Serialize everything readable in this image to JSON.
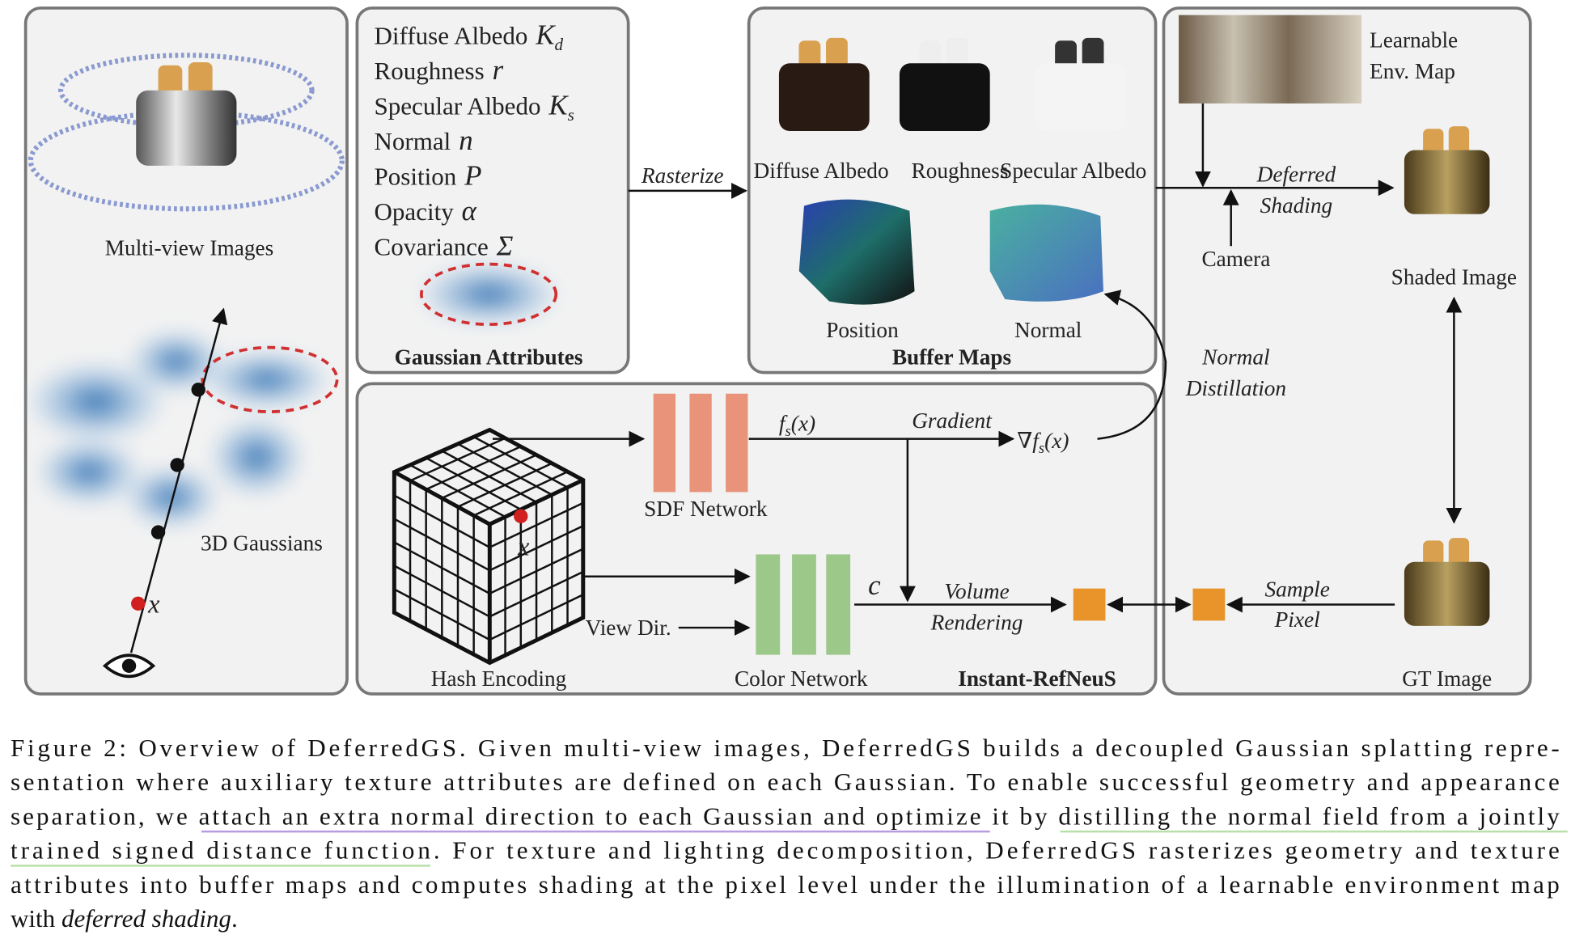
{
  "figure": {
    "multiview": {
      "label": "Multi-view Images",
      "gaussians_label": "3D Gaussians",
      "point_label": "x"
    },
    "attributes": {
      "items": [
        {
          "name": "Diffuse Albedo",
          "symbol": "K",
          "subscript": "d"
        },
        {
          "name": "Roughness",
          "symbol": "r"
        },
        {
          "name": "Specular Albedo",
          "symbol": "K",
          "subscript": "s"
        },
        {
          "name": "Normal",
          "symbol": "n"
        },
        {
          "name": "Position",
          "symbol": "P"
        },
        {
          "name": "Opacity",
          "symbol": "α"
        },
        {
          "name": "Covariance",
          "symbol": "Σ"
        }
      ],
      "title": "Gaussian Attributes"
    },
    "rasterize": "Rasterize",
    "buffer_maps": {
      "title": "Buffer Maps",
      "labels": [
        "Diffuse Albedo",
        "Roughness",
        "Specular Albedo",
        "Position",
        "Normal"
      ]
    },
    "shading": {
      "env_map": [
        "Learnable",
        "Env. Map"
      ],
      "deferred": [
        "Deferred",
        "Shading"
      ],
      "camera": "Camera",
      "shaded": "Shaded Image",
      "gt": "GT Image",
      "sample": [
        "Sample",
        "Pixel"
      ]
    },
    "normal_distillation": [
      "Normal",
      "Distillation"
    ],
    "neus": {
      "title": "Instant-RefNeuS",
      "hash": "Hash Encoding",
      "point": "x",
      "sdf": "SDF Network",
      "sdf_out": "f",
      "sdf_sub": "s",
      "sdf_arg": "(x)",
      "gradient": "Gradient",
      "nabla": "∇",
      "color": "Color Network",
      "view_dir": "View Dir.",
      "c": "c",
      "volume": [
        "Volume",
        "Rendering"
      ]
    }
  },
  "caption": {
    "lines": [
      "Figure 2: Overview of DeferredGS. Given multi-view images, DeferredGS builds a decoupled Gaussian splatting repre-",
      "sentation where auxiliary texture attributes are defined on each Gaussian. To enable successful geometry and appearance",
      "separation, we attach an extra normal direction to each Gaussian and optimize it by distilling the normal field from a jointly",
      "trained signed distance function. For texture and lighting decomposition, DeferredGS rasterizes geometry and texture",
      "attributes into buffer maps and computes shading at the pixel level under the illumination of a learnable environment map"
    ],
    "closing": [
      "with",
      "deferred shading",
      "."
    ]
  }
}
